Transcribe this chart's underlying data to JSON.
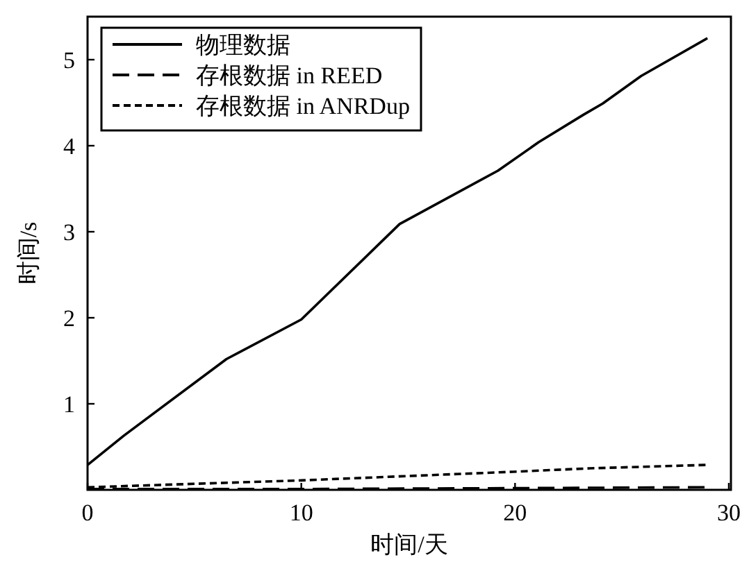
{
  "chart_data": {
    "type": "line",
    "xlabel": "时间/天",
    "ylabel": "时间/s",
    "xlim": [
      0,
      30.1
    ],
    "ylim": [
      0,
      5.5
    ],
    "xticks": [
      0,
      10,
      20,
      30
    ],
    "yticks": [
      1,
      2,
      3,
      4,
      5
    ],
    "legend": "top left",
    "grid": false,
    "series": [
      {
        "name": "物理数据",
        "color": "#000000",
        "line_style": "solid",
        "x": [
          0,
          1.7,
          6.5,
          10,
          14.6,
          19.2,
          21.1,
          23.2,
          24.1,
          25.9,
          29
        ],
        "values": [
          0.29,
          0.63,
          1.52,
          1.98,
          3.09,
          3.71,
          4.04,
          4.36,
          4.49,
          4.81,
          5.25
        ]
      },
      {
        "name": "存根数据 in REED",
        "color": "#000000",
        "line_style": "dashed",
        "x": [
          0,
          10,
          20,
          29
        ],
        "values": [
          0.01,
          0.01,
          0.02,
          0.03
        ]
      },
      {
        "name": "存根数据 in ANRDup",
        "color": "#000000",
        "line_style": "dotted",
        "x": [
          0,
          10,
          19.9,
          23.5,
          29
        ],
        "values": [
          0.03,
          0.11,
          0.21,
          0.25,
          0.29
        ]
      }
    ]
  }
}
